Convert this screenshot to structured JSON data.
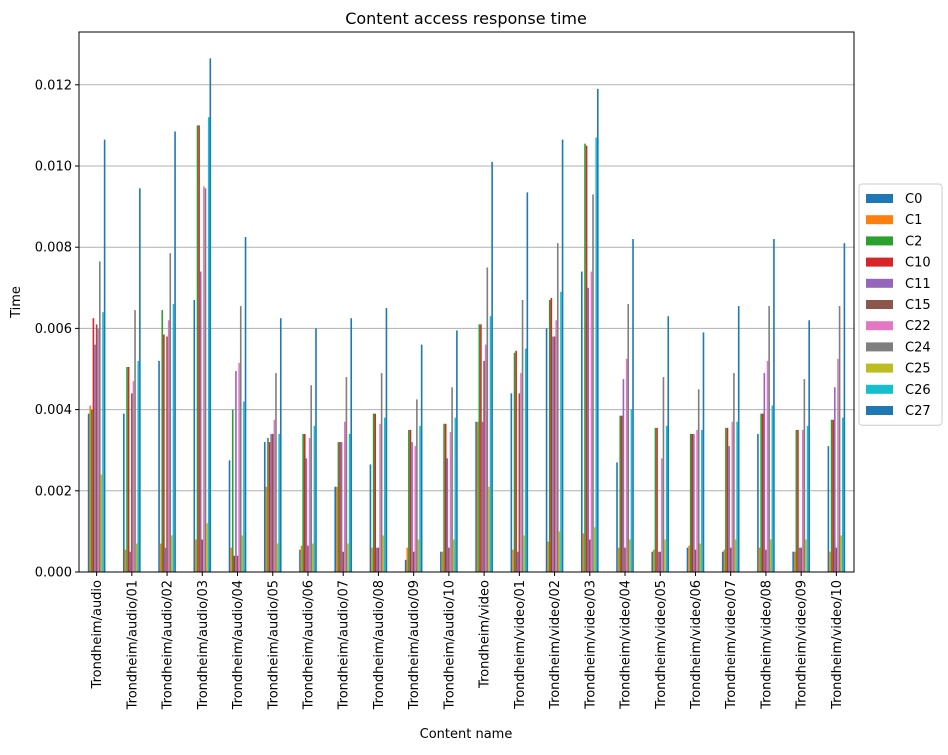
{
  "chart_data": {
    "type": "bar",
    "title": "Content access response time",
    "xlabel": "Content name",
    "ylabel": "Time",
    "ylim": [
      0,
      0.0133
    ],
    "yticks": [
      "0.000",
      "0.002",
      "0.004",
      "0.006",
      "0.008",
      "0.010",
      "0.012"
    ],
    "ytick_values": [
      0,
      0.002,
      0.004,
      0.006,
      0.008,
      0.01,
      0.012
    ],
    "grid": "horizontal",
    "legend_position": "right",
    "categories": [
      "Trondheim/audio",
      "Trondheim/audio/01",
      "Trondheim/audio/02",
      "Trondheim/audio/03",
      "Trondheim/audio/04",
      "Trondheim/audio/05",
      "Trondheim/audio/06",
      "Trondheim/audio/07",
      "Trondheim/audio/08",
      "Trondheim/audio/09",
      "Trondheim/audio/10",
      "Trondheim/video",
      "Trondheim/video/01",
      "Trondheim/video/02",
      "Trondheim/video/03",
      "Trondheim/video/04",
      "Trondheim/video/05",
      "Trondheim/video/06",
      "Trondheim/video/07",
      "Trondheim/video/08",
      "Trondheim/video/09",
      "Trondheim/video/10"
    ],
    "series": [
      {
        "name": "C0",
        "color": "#1f77b4",
        "values": [
          0.0039,
          0.0039,
          0.0052,
          0.0067,
          0.00275,
          0.0032,
          0.00055,
          0.0021,
          0.00265,
          0.0003,
          0.0005,
          0.0037,
          0.0044,
          0.006,
          0.0074,
          0.0027,
          0.0005,
          0.0006,
          0.0005,
          0.0034,
          0.0005,
          0.0031
        ]
      },
      {
        "name": "C1",
        "color": "#ff7f0e",
        "values": [
          0.0041,
          0.00055,
          0.0007,
          0.0008,
          0.0006,
          0.0021,
          0.00065,
          0.0021,
          0.0006,
          0.0006,
          0.0005,
          0.0037,
          0.00055,
          0.00075,
          0.00095,
          0.0006,
          0.00055,
          0.00065,
          0.00055,
          0.0006,
          0.0005,
          0.0005
        ]
      },
      {
        "name": "C2",
        "color": "#2ca02c",
        "values": [
          0.004,
          0.00505,
          0.00645,
          0.011,
          0.004,
          0.0033,
          0.0034,
          0.0032,
          0.0039,
          0.0035,
          0.00365,
          0.0061,
          0.0054,
          0.0067,
          0.01055,
          0.00385,
          0.00355,
          0.0034,
          0.00355,
          0.0039,
          0.0035,
          0.00375
        ]
      },
      {
        "name": "C10",
        "color": "#d62728",
        "values": [
          0.00625,
          0.00505,
          0.00585,
          0.011,
          0.0004,
          0.0032,
          0.0034,
          0.0032,
          0.0039,
          0.0035,
          0.00365,
          0.0061,
          0.00545,
          0.00675,
          0.0105,
          0.00385,
          0.00355,
          0.0034,
          0.00355,
          0.0039,
          0.0035,
          0.00375
        ]
      },
      {
        "name": "C11",
        "color": "#9467bd",
        "values": [
          0.0056,
          0.0005,
          0.0006,
          0.0074,
          0.00495,
          0.0034,
          0.0028,
          0.0032,
          0.0006,
          0.0032,
          0.0028,
          0.0037,
          0.0005,
          0.0058,
          0.007,
          0.00475,
          0.0005,
          0.0034,
          0.0031,
          0.0049,
          0.0006,
          0.00455
        ]
      },
      {
        "name": "C15",
        "color": "#8c564b",
        "values": [
          0.0061,
          0.0044,
          0.0058,
          0.0008,
          0.0004,
          0.0034,
          0.00065,
          0.0005,
          0.0006,
          0.0005,
          0.0006,
          0.0052,
          0.0044,
          0.0058,
          0.0008,
          0.0006,
          0.0005,
          0.00055,
          0.0006,
          0.00055,
          0.0006,
          0.0006
        ]
      },
      {
        "name": "C22",
        "color": "#e377c2",
        "values": [
          0.006,
          0.0047,
          0.0062,
          0.0095,
          0.00515,
          0.00375,
          0.0033,
          0.0037,
          0.00365,
          0.0031,
          0.00345,
          0.0056,
          0.0049,
          0.0062,
          0.0074,
          0.00525,
          0.0028,
          0.0035,
          0.0037,
          0.0052,
          0.0035,
          0.00525
        ]
      },
      {
        "name": "C24",
        "color": "#7f7f7f",
        "values": [
          0.00765,
          0.00645,
          0.00785,
          0.00945,
          0.00655,
          0.0049,
          0.0046,
          0.0048,
          0.0049,
          0.00425,
          0.00455,
          0.0075,
          0.0067,
          0.0081,
          0.0093,
          0.0066,
          0.0048,
          0.0045,
          0.0049,
          0.00655,
          0.00475,
          0.00655
        ]
      },
      {
        "name": "C25",
        "color": "#bcbd22",
        "values": [
          0.0024,
          0.0007,
          0.0009,
          0.0012,
          0.0009,
          0.0007,
          0.0007,
          0.0007,
          0.0009,
          0.0008,
          0.0008,
          0.0021,
          0.0009,
          0.001,
          0.0011,
          0.0008,
          0.0008,
          0.0007,
          0.0008,
          0.0008,
          0.0008,
          0.0009
        ]
      },
      {
        "name": "C26",
        "color": "#17becf",
        "values": [
          0.0064,
          0.0052,
          0.0066,
          0.0112,
          0.0042,
          0.0034,
          0.0036,
          0.0034,
          0.0038,
          0.0036,
          0.0038,
          0.0063,
          0.0055,
          0.0069,
          0.0107,
          0.004,
          0.0036,
          0.0035,
          0.0037,
          0.0041,
          0.0036,
          0.0038
        ]
      },
      {
        "name": "C27",
        "color": "#1f77b4",
        "values": [
          0.01065,
          0.00945,
          0.01085,
          0.01265,
          0.00825,
          0.00625,
          0.006,
          0.00625,
          0.0065,
          0.0056,
          0.00595,
          0.0101,
          0.00935,
          0.01065,
          0.0119,
          0.0082,
          0.0063,
          0.0059,
          0.00655,
          0.0082,
          0.0062,
          0.0081
        ]
      }
    ]
  }
}
